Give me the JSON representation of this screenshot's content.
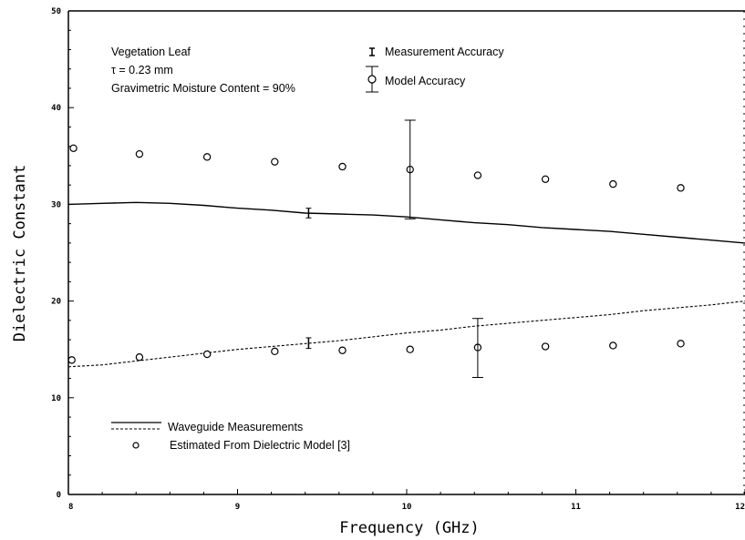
{
  "chart_data": {
    "type": "line",
    "xlabel": "Frequency (GHz)",
    "ylabel": "Dielectric Constant",
    "xlim": [
      8,
      12
    ],
    "ylim": [
      0,
      50
    ],
    "xticks": [
      "8",
      "9",
      "10",
      "11",
      "12"
    ],
    "yticks": [
      "0",
      "10",
      "20",
      "30",
      "40",
      "50"
    ],
    "annotations": {
      "line1": "Vegetation Leaf",
      "line2": "τ = 0.23  mm",
      "line3": "Gravimetric Moisture Content = 90%",
      "legend_accuracy_measure": "Measurement Accuracy",
      "legend_accuracy_model": "Model Accuracy"
    },
    "legend": {
      "waveguide": "Waveguide Measurements",
      "model": "Estimated From Dielectric Model [3]"
    },
    "series": [
      {
        "name": "Waveguide Measurements",
        "style": "solid",
        "x": [
          8.0,
          8.2,
          8.4,
          8.6,
          8.8,
          9.0,
          9.2,
          9.4,
          9.6,
          9.8,
          10.0,
          10.2,
          10.4,
          10.6,
          10.8,
          11.0,
          11.2,
          11.4,
          11.6,
          11.8,
          12.0
        ],
        "y": [
          30.0,
          30.1,
          30.2,
          30.1,
          29.9,
          29.6,
          29.4,
          29.1,
          29.0,
          28.9,
          28.7,
          28.4,
          28.1,
          27.9,
          27.6,
          27.4,
          27.2,
          26.9,
          26.6,
          26.3,
          26.0
        ]
      },
      {
        "name": "Waveguide Measurements",
        "style": "dashed",
        "x": [
          8.0,
          8.2,
          8.4,
          8.6,
          8.8,
          9.0,
          9.2,
          9.4,
          9.6,
          9.8,
          10.0,
          10.2,
          10.4,
          10.6,
          10.8,
          11.0,
          11.2,
          11.4,
          11.6,
          11.8,
          12.0
        ],
        "y": [
          13.2,
          13.4,
          13.8,
          14.2,
          14.6,
          15.0,
          15.3,
          15.6,
          15.9,
          16.3,
          16.7,
          17.0,
          17.4,
          17.7,
          18.0,
          18.3,
          18.6,
          19.0,
          19.3,
          19.6,
          20.0
        ]
      },
      {
        "name": "Estimated From Dielectric Model [3]",
        "style": "circle",
        "x": [
          8.03,
          8.42,
          8.82,
          9.22,
          9.62,
          10.02,
          10.42,
          10.82,
          11.22,
          11.62
        ],
        "y": [
          35.8,
          35.2,
          34.9,
          34.4,
          33.9,
          33.6,
          33.0,
          32.6,
          32.1,
          31.7
        ]
      },
      {
        "name": "Estimated From Dielectric Model [3]",
        "style": "circle",
        "x": [
          8.02,
          8.42,
          8.82,
          9.22,
          9.62,
          10.02,
          10.42,
          10.82,
          11.22,
          11.62
        ],
        "y": [
          13.9,
          14.2,
          14.5,
          14.8,
          14.9,
          15.0,
          15.2,
          15.3,
          15.4,
          15.6
        ]
      }
    ],
    "error_bars": [
      {
        "kind": "measurement",
        "x": 9.42,
        "y_low": 28.6,
        "y_high": 29.6
      },
      {
        "kind": "model",
        "x": 10.02,
        "y_low": 28.5,
        "y_high": 38.7
      },
      {
        "kind": "measurement",
        "x": 9.42,
        "y_low": 15.1,
        "y_high": 16.2
      },
      {
        "kind": "model",
        "x": 10.42,
        "y_low": 12.1,
        "y_high": 18.2
      }
    ]
  }
}
